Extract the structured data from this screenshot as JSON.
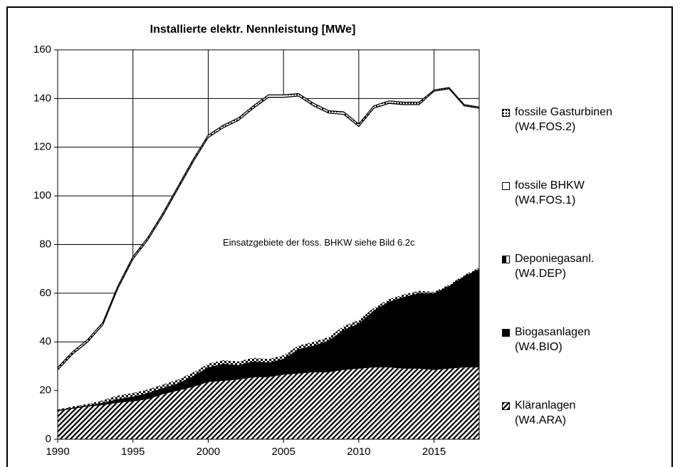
{
  "chart_data": {
    "type": "stacked_area",
    "title": "Installierte elektr. Nennleistung [MWe]",
    "annotation": "Einsatzgebiete der foss. BHKW siehe Bild 6.2c",
    "x": [
      1990,
      1991,
      1992,
      1993,
      1994,
      1995,
      1996,
      1997,
      1998,
      1999,
      2000,
      2001,
      2002,
      2003,
      2004,
      2005,
      2006,
      2007,
      2008,
      2009,
      2010,
      2011,
      2012,
      2013,
      2014,
      2015,
      2016,
      2017,
      2018
    ],
    "series": [
      {
        "name": "Kläranlagen\n(W4.ARA)",
        "color": "#000000",
        "values": [
          11.5,
          12.5,
          13.5,
          14,
          15,
          15.5,
          16.5,
          18.5,
          20,
          21.5,
          23.5,
          24,
          24.5,
          25.5,
          25.5,
          26.5,
          27,
          27.5,
          27.5,
          28.5,
          29,
          29.5,
          29.5,
          29,
          29,
          28.5,
          29,
          29.5,
          29.5
        ]
      },
      {
        "name": "Biogasanlagen\n(W4.BIO)",
        "color": "#000000",
        "values": [
          0.5,
          0.5,
          0.5,
          1,
          1.5,
          2,
          2.5,
          2.5,
          3,
          4.5,
          6,
          7,
          6,
          6.5,
          6,
          6.5,
          10,
          11,
          13,
          16.5,
          18.5,
          23.5,
          27,
          29.5,
          31,
          31.5,
          34,
          37.5,
          40.5
        ]
      },
      {
        "name": "Deponiegasanl.\n(W4.DEP)",
        "color": "#000000",
        "values": [
          0.3,
          0.5,
          0.5,
          1,
          1.5,
          1.5,
          1.5,
          1.5,
          1.5,
          1.5,
          1.5,
          1.5,
          1.5,
          1.5,
          1.5,
          1.5,
          1.5,
          1.5,
          1.5,
          1.5,
          1.5,
          1,
          1,
          1,
          1,
          0.5,
          0.5,
          0.5,
          0.5
        ]
      },
      {
        "name": "fossile BHKW\n(W4.FOS.1)",
        "color": "#ffffff",
        "values": [
          16.2,
          21.5,
          25.5,
          31,
          44,
          55,
          61.5,
          69.5,
          78.5,
          86.5,
          93,
          95.5,
          99,
          102.5,
          107.5,
          106,
          102.5,
          97,
          92,
          87,
          79.5,
          82,
          80.5,
          78,
          76.5,
          82.5,
          80.5,
          69.5,
          65.5
        ]
      },
      {
        "name": "fossile Gasturbinen\n(W4.FOS.2)",
        "color": "#ffffff",
        "values": [
          1,
          1,
          1,
          1,
          1,
          1,
          1,
          1,
          1,
          1,
          1,
          1,
          1,
          1,
          1,
          1,
          1,
          1,
          1,
          1,
          1,
          1,
          1,
          1,
          1,
          0.5,
          0.5,
          0.5,
          0.5
        ]
      }
    ],
    "xlim": [
      1990,
      2018
    ],
    "xticks": [
      1990,
      1995,
      2000,
      2005,
      2010,
      2015
    ],
    "ylim": [
      0,
      160
    ],
    "yticks": [
      0,
      20,
      40,
      60,
      80,
      100,
      120,
      140,
      160
    ],
    "grid": true,
    "legend": "right"
  }
}
